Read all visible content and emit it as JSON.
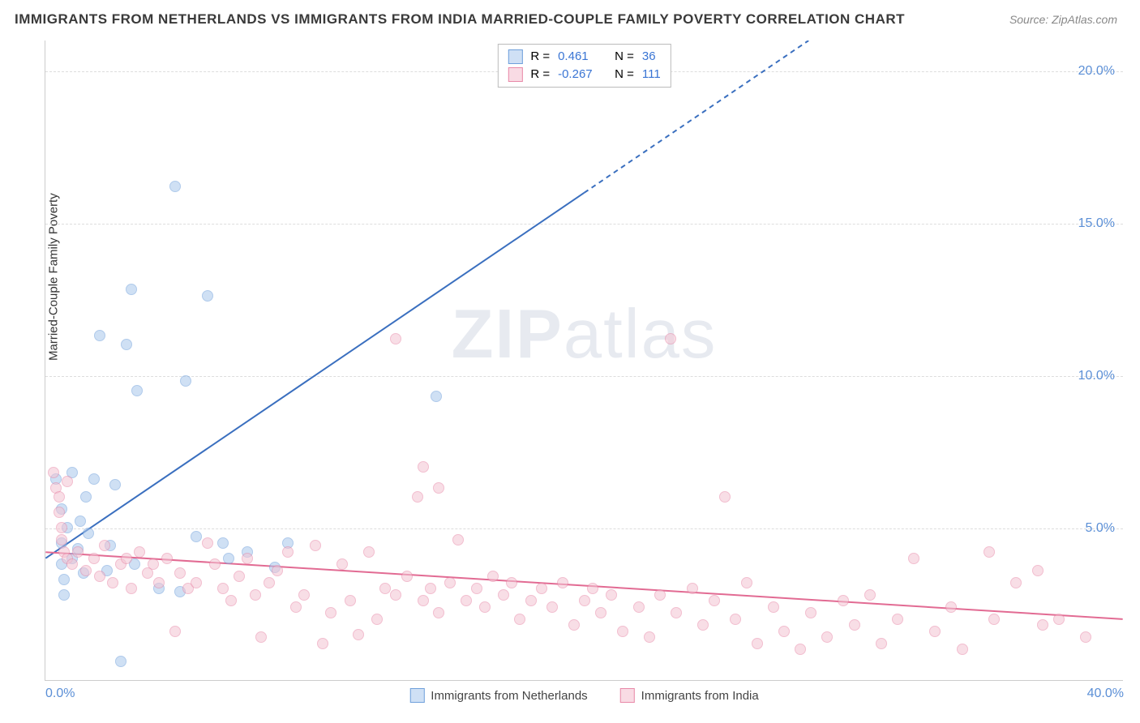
{
  "title": "IMMIGRANTS FROM NETHERLANDS VS IMMIGRANTS FROM INDIA MARRIED-COUPLE FAMILY POVERTY CORRELATION CHART",
  "source": "Source: ZipAtlas.com",
  "ylabel": "Married-Couple Family Poverty",
  "watermark_bold": "ZIP",
  "watermark_rest": "atlas",
  "chart": {
    "type": "scatter",
    "xlim": [
      0,
      40
    ],
    "ylim": [
      0,
      21
    ],
    "yticks": [
      5,
      10,
      15,
      20
    ],
    "ytick_labels": [
      "5.0%",
      "10.0%",
      "15.0%",
      "20.0%"
    ],
    "xticks": [
      0,
      40
    ],
    "xtick_labels": [
      "0.0%",
      "40.0%"
    ],
    "grid_color": "#dddddd",
    "axis_color": "#cccccc",
    "background": "#ffffff",
    "tick_label_color": "#5b8fd6",
    "marker_radius": 7,
    "marker_opacity": 0.55,
    "series": [
      {
        "name": "Immigrants from Netherlands",
        "color_fill": "#a9c7ec",
        "color_stroke": "#6fa0db",
        "legend_swatch_fill": "#cfe0f5",
        "legend_swatch_stroke": "#6fa0db",
        "r_label": "R =",
        "r_value": "0.461",
        "n_label": "N =",
        "n_value": "36",
        "r_text_color": "#333333",
        "r_value_color": "#3a75d4",
        "trend": {
          "x1": 0,
          "y1": 4.0,
          "x2": 40,
          "y2": 28.0,
          "solid_until_x": 20,
          "color": "#3a6fbf",
          "width": 2
        },
        "points": [
          [
            0.4,
            6.6
          ],
          [
            0.6,
            5.6
          ],
          [
            0.6,
            4.5
          ],
          [
            0.6,
            3.8
          ],
          [
            0.7,
            3.3
          ],
          [
            0.7,
            2.8
          ],
          [
            1.0,
            6.8
          ],
          [
            1.0,
            4.0
          ],
          [
            1.2,
            4.3
          ],
          [
            1.3,
            5.2
          ],
          [
            1.4,
            3.5
          ],
          [
            1.5,
            6.0
          ],
          [
            1.6,
            4.8
          ],
          [
            1.8,
            6.6
          ],
          [
            2.0,
            11.3
          ],
          [
            2.3,
            3.6
          ],
          [
            2.4,
            4.4
          ],
          [
            2.6,
            6.4
          ],
          [
            2.8,
            0.6
          ],
          [
            3.0,
            11.0
          ],
          [
            3.2,
            12.8
          ],
          [
            3.3,
            3.8
          ],
          [
            3.4,
            9.5
          ],
          [
            4.2,
            3.0
          ],
          [
            4.8,
            16.2
          ],
          [
            5.0,
            2.9
          ],
          [
            5.2,
            9.8
          ],
          [
            5.6,
            4.7
          ],
          [
            6.0,
            12.6
          ],
          [
            6.6,
            4.5
          ],
          [
            6.8,
            4.0
          ],
          [
            7.5,
            4.2
          ],
          [
            8.5,
            3.7
          ],
          [
            9.0,
            4.5
          ],
          [
            14.5,
            9.3
          ],
          [
            0.8,
            5.0
          ]
        ]
      },
      {
        "name": "Immigrants from India",
        "color_fill": "#f4c4d3",
        "color_stroke": "#e889a8",
        "legend_swatch_fill": "#f9dbe4",
        "legend_swatch_stroke": "#e889a8",
        "r_label": "R =",
        "r_value": "-0.267",
        "n_label": "N =",
        "n_value": "111",
        "r_text_color": "#333333",
        "r_value_color": "#3a75d4",
        "trend": {
          "x1": 0,
          "y1": 4.2,
          "x2": 40,
          "y2": 2.0,
          "solid_until_x": 40,
          "color": "#e26b93",
          "width": 2
        },
        "points": [
          [
            0.3,
            6.8
          ],
          [
            0.4,
            6.3
          ],
          [
            0.5,
            6.0
          ],
          [
            0.5,
            5.5
          ],
          [
            0.6,
            5.0
          ],
          [
            0.6,
            4.6
          ],
          [
            0.7,
            4.2
          ],
          [
            0.8,
            6.5
          ],
          [
            0.8,
            4.0
          ],
          [
            1.0,
            3.8
          ],
          [
            1.2,
            4.2
          ],
          [
            1.5,
            3.6
          ],
          [
            1.8,
            4.0
          ],
          [
            2.0,
            3.4
          ],
          [
            2.2,
            4.4
          ],
          [
            2.5,
            3.2
          ],
          [
            2.8,
            3.8
          ],
          [
            3.0,
            4.0
          ],
          [
            3.2,
            3.0
          ],
          [
            3.5,
            4.2
          ],
          [
            3.8,
            3.5
          ],
          [
            4.0,
            3.8
          ],
          [
            4.2,
            3.2
          ],
          [
            4.5,
            4.0
          ],
          [
            4.8,
            1.6
          ],
          [
            5.0,
            3.5
          ],
          [
            5.3,
            3.0
          ],
          [
            5.6,
            3.2
          ],
          [
            6.0,
            4.5
          ],
          [
            6.3,
            3.8
          ],
          [
            6.6,
            3.0
          ],
          [
            6.9,
            2.6
          ],
          [
            7.2,
            3.4
          ],
          [
            7.5,
            4.0
          ],
          [
            7.8,
            2.8
          ],
          [
            8.0,
            1.4
          ],
          [
            8.3,
            3.2
          ],
          [
            8.6,
            3.6
          ],
          [
            9.0,
            4.2
          ],
          [
            9.3,
            2.4
          ],
          [
            9.6,
            2.8
          ],
          [
            10.0,
            4.4
          ],
          [
            10.3,
            1.2
          ],
          [
            10.6,
            2.2
          ],
          [
            11.0,
            3.8
          ],
          [
            11.3,
            2.6
          ],
          [
            11.6,
            1.5
          ],
          [
            12.0,
            4.2
          ],
          [
            12.3,
            2.0
          ],
          [
            12.6,
            3.0
          ],
          [
            13.0,
            11.2
          ],
          [
            13.0,
            2.8
          ],
          [
            13.4,
            3.4
          ],
          [
            13.8,
            6.0
          ],
          [
            14.0,
            2.6
          ],
          [
            14.0,
            7.0
          ],
          [
            14.3,
            3.0
          ],
          [
            14.6,
            6.3
          ],
          [
            14.6,
            2.2
          ],
          [
            15.0,
            3.2
          ],
          [
            15.3,
            4.6
          ],
          [
            15.6,
            2.6
          ],
          [
            16.0,
            3.0
          ],
          [
            16.3,
            2.4
          ],
          [
            16.6,
            3.4
          ],
          [
            17.0,
            2.8
          ],
          [
            17.3,
            3.2
          ],
          [
            17.6,
            2.0
          ],
          [
            18.0,
            2.6
          ],
          [
            18.4,
            3.0
          ],
          [
            18.8,
            2.4
          ],
          [
            19.2,
            3.2
          ],
          [
            19.6,
            1.8
          ],
          [
            20.0,
            2.6
          ],
          [
            20.3,
            3.0
          ],
          [
            20.6,
            2.2
          ],
          [
            21.0,
            2.8
          ],
          [
            21.4,
            1.6
          ],
          [
            22.0,
            2.4
          ],
          [
            22.4,
            1.4
          ],
          [
            22.8,
            2.8
          ],
          [
            23.2,
            11.2
          ],
          [
            23.4,
            2.2
          ],
          [
            24.0,
            3.0
          ],
          [
            24.4,
            1.8
          ],
          [
            24.8,
            2.6
          ],
          [
            25.2,
            6.0
          ],
          [
            25.6,
            2.0
          ],
          [
            26.0,
            3.2
          ],
          [
            26.4,
            1.2
          ],
          [
            27.0,
            2.4
          ],
          [
            27.4,
            1.6
          ],
          [
            28.0,
            1.0
          ],
          [
            28.4,
            2.2
          ],
          [
            29.0,
            1.4
          ],
          [
            29.6,
            2.6
          ],
          [
            30.0,
            1.8
          ],
          [
            30.6,
            2.8
          ],
          [
            31.0,
            1.2
          ],
          [
            31.6,
            2.0
          ],
          [
            32.2,
            4.0
          ],
          [
            33.0,
            1.6
          ],
          [
            33.6,
            2.4
          ],
          [
            34.0,
            1.0
          ],
          [
            35.0,
            4.2
          ],
          [
            35.2,
            2.0
          ],
          [
            36.0,
            3.2
          ],
          [
            36.8,
            3.6
          ],
          [
            37.0,
            1.8
          ],
          [
            37.6,
            2.0
          ],
          [
            38.6,
            1.4
          ]
        ]
      }
    ]
  }
}
